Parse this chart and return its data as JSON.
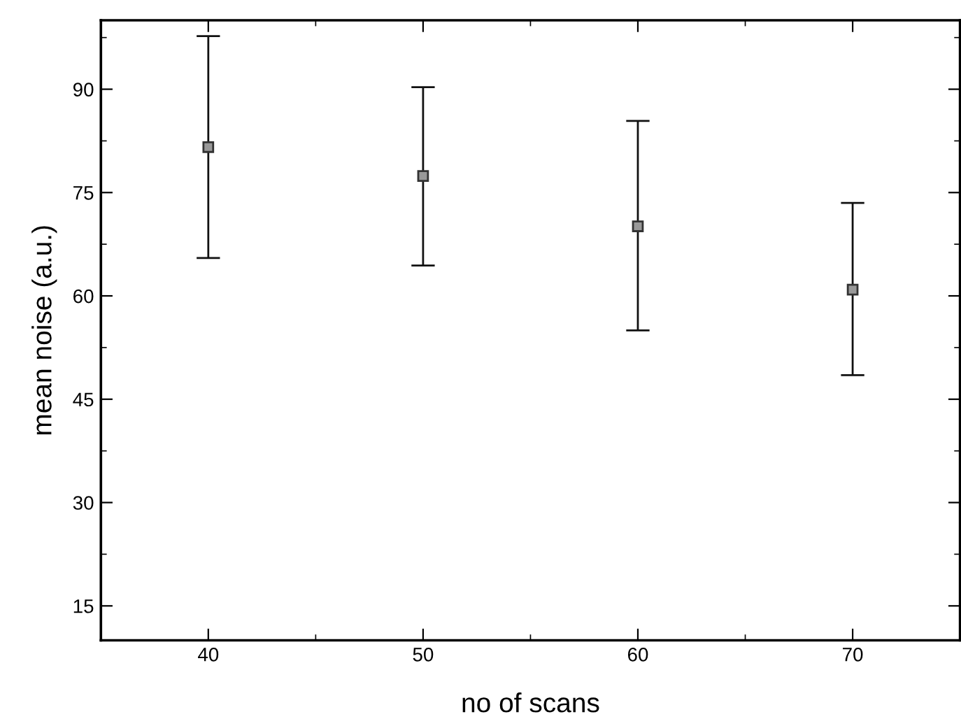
{
  "chart_data": {
    "type": "scatter",
    "xlabel": "no of scans",
    "ylabel": "mean noise (a.u.)",
    "x": [
      40,
      50,
      60,
      70
    ],
    "values": [
      81.6,
      77.4,
      70.1,
      60.9
    ],
    "errors": [
      [
        65.5,
        97.7
      ],
      [
        64.4,
        90.3
      ],
      [
        55.0,
        85.4
      ],
      [
        48.5,
        73.5
      ]
    ],
    "color": "#333333",
    "marker": "square",
    "xlim": [
      35,
      75
    ],
    "ylim": [
      10,
      100
    ],
    "xticks": [
      40,
      50,
      60,
      70
    ],
    "yticks": [
      15,
      30,
      45,
      60,
      75,
      90
    ],
    "grid": false
  }
}
